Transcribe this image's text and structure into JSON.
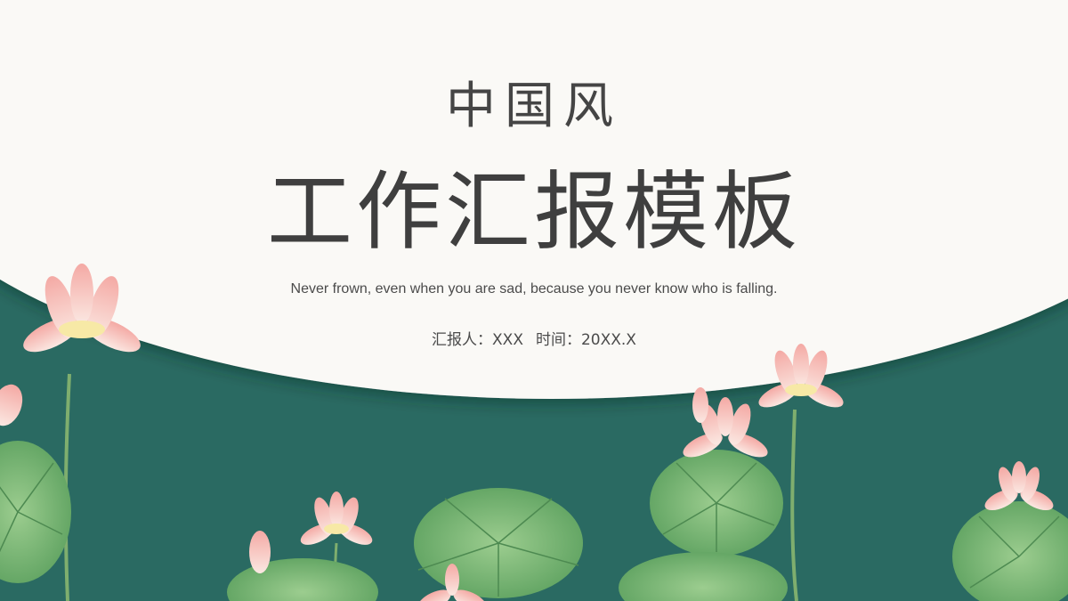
{
  "slide": {
    "title_small": "中国风",
    "title_large": "工作汇报模板",
    "subtitle": "Never frown, even when you are sad, because you never know who is falling.",
    "reporter_label": "汇报人：XXX",
    "time_label": "时间：20XX.X"
  },
  "colors": {
    "background": "#2a6a62",
    "arch": "#faf9f6",
    "title_text": "#3f3f3f",
    "lotus_petal": "#f2b7b3",
    "lotus_leaf": "#6fae6c"
  },
  "decorations": {
    "icons": [
      "lotus-flower-icon",
      "lotus-leaf-icon",
      "lotus-bud-icon"
    ]
  }
}
